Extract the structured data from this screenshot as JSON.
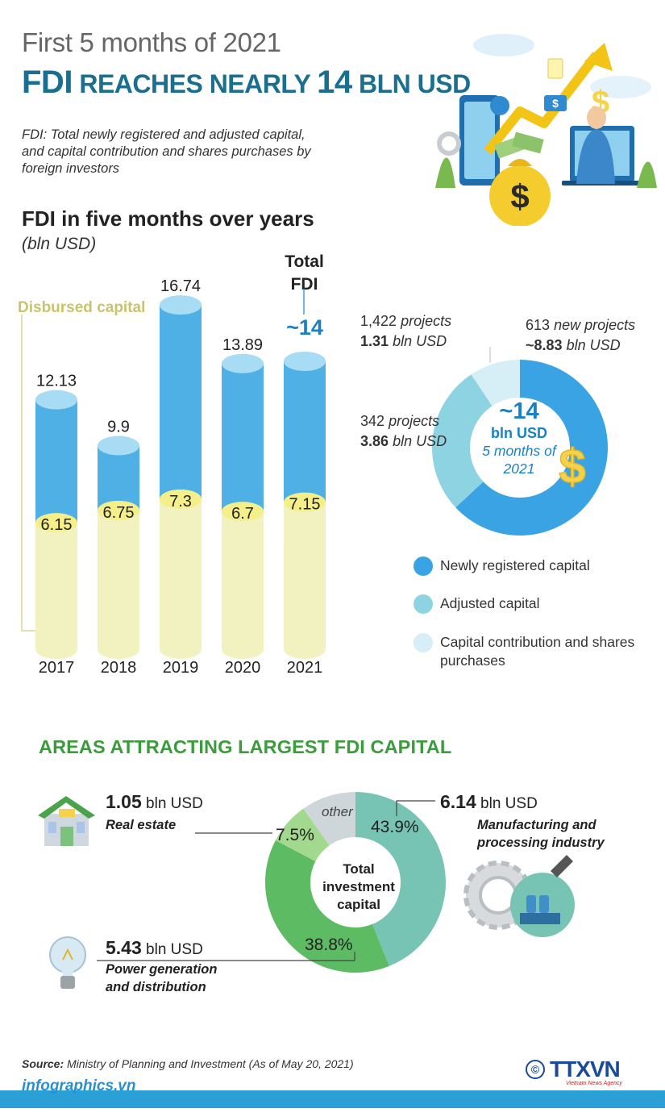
{
  "header": {
    "subtitle": "First 5 months of 2021",
    "headline_fdi": "FDI",
    "headline_rest1": " REACHES NEARLY ",
    "headline_num": "14",
    "headline_rest2": " BLN USD",
    "definition": "FDI: Total newly registered and adjusted capital, and capital contribution and shares purchases by foreign investors"
  },
  "colors": {
    "title_teal": "#1a6f8f",
    "bar_blue": "#4fb0e6",
    "bar_blue_top": "#a8dcf5",
    "bar_yellow": "#f2f2c0",
    "bar_yellow_top": "#f5ef8a",
    "disbursed_label": "#c9c46a",
    "new_capital": "#3aa3e3",
    "adjusted_capital": "#8ed3e2",
    "contribution": "#d6eef6",
    "manufacturing": "#78c4b4",
    "power": "#5dbb63",
    "real_estate": "#a3d98f",
    "other": "#cfd6da",
    "section_green": "#3a9c3a",
    "footer_blue": "#2ba0d6"
  },
  "chart_data": [
    {
      "type": "bar",
      "title": "FDI in five months over years",
      "unit": "(bln USD)",
      "categories": [
        "2017",
        "2018",
        "2019",
        "2020",
        "2021"
      ],
      "series": [
        {
          "name": "Total FDI",
          "values": [
            12.13,
            9.9,
            16.74,
            13.89,
            14
          ],
          "labels": [
            "12.13",
            "9.9",
            "16.74",
            "13.89",
            "~14"
          ]
        },
        {
          "name": "Disbursed capital",
          "values": [
            6.15,
            6.75,
            7.3,
            6.7,
            7.15
          ],
          "labels": [
            "6.15",
            "6.75",
            "7.3",
            "6.7",
            "7.15"
          ]
        }
      ],
      "annotations": {
        "total_label": "Total FDI",
        "disbursed_label": "Disbursed capital"
      }
    },
    {
      "type": "pie",
      "center_value": "~14",
      "center_unit": "bln USD",
      "center_period": "5 months of 2021",
      "slices": [
        {
          "name": "Newly registered capital",
          "value": 8.83,
          "projects": "613",
          "projects_word": "new projects",
          "amount": "~8.83",
          "unit": "bln USD"
        },
        {
          "name": "Adjusted capital",
          "value": 3.86,
          "projects": "342",
          "projects_word": "projects",
          "amount": "3.86",
          "unit": "bln USD"
        },
        {
          "name": "Capital contribution and shares purchases",
          "value": 1.31,
          "projects": "1,422",
          "projects_word": "projects",
          "amount": "1.31",
          "unit": "bln USD"
        }
      ]
    },
    {
      "type": "pie",
      "title": "AREAS ATTRACTING LARGEST FDI CAPITAL",
      "center_label": "Total investment capital",
      "slices": [
        {
          "name": "Manufacturing and processing industry",
          "pct": 43.9,
          "pct_label": "43.9%",
          "amount": "6.14",
          "unit": "bln USD"
        },
        {
          "name": "Power generation and distribution",
          "pct": 38.8,
          "pct_label": "38.8%",
          "amount": "5.43",
          "unit": "bln USD"
        },
        {
          "name": "Real estate",
          "pct": 7.5,
          "pct_label": "7.5%",
          "amount": "1.05",
          "unit": "bln USD"
        },
        {
          "name": "other",
          "pct": 9.8,
          "pct_label": "other"
        }
      ]
    }
  ],
  "legend": [
    {
      "label": "Newly registered capital"
    },
    {
      "label": "Adjusted capital"
    },
    {
      "label": "Capital contribution and shares purchases"
    }
  ],
  "footer": {
    "source_label": "Source:",
    "source_text": "Ministry of Planning and Investment  (As of May 20, 2021)",
    "site": "infographics.vn",
    "logo_copyright": "©",
    "logo_text": "TTXVN",
    "logo_sub": "Vietnam News Agency"
  }
}
